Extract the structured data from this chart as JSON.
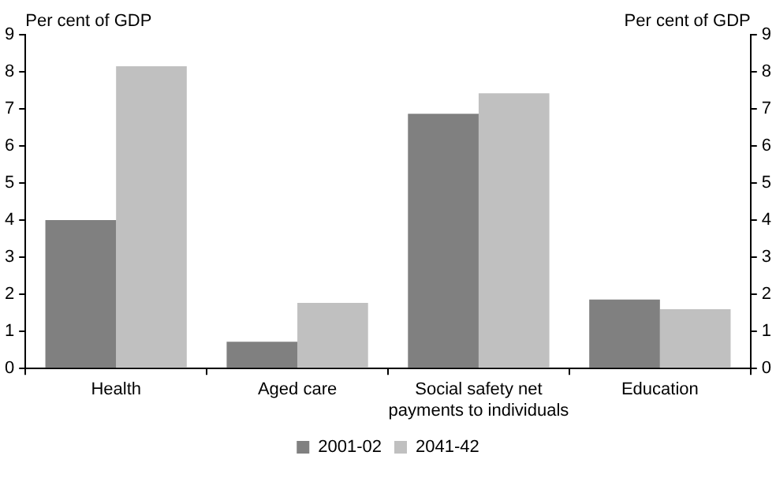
{
  "chart_data": {
    "type": "bar",
    "ylabel": "Per cent of GDP",
    "y2label": "Per cent of GDP",
    "categories": [
      "Health",
      "Aged care",
      "Social safety net payments to individuals",
      "Education"
    ],
    "series": [
      {
        "name": "2001-02",
        "color": "#808080",
        "values": [
          4.0,
          0.72,
          6.87,
          1.86
        ]
      },
      {
        "name": "2041-42",
        "color": "#c0c0c0",
        "values": [
          8.15,
          1.77,
          7.42,
          1.6
        ]
      }
    ],
    "ylim": [
      0,
      9
    ],
    "yticks": [
      0,
      1,
      2,
      3,
      4,
      5,
      6,
      7,
      8,
      9
    ],
    "y2lim": [
      0,
      9
    ],
    "y2ticks": [
      0,
      1,
      2,
      3,
      4,
      5,
      6,
      7,
      8,
      9
    ],
    "grid": false,
    "legend": "bottom"
  }
}
